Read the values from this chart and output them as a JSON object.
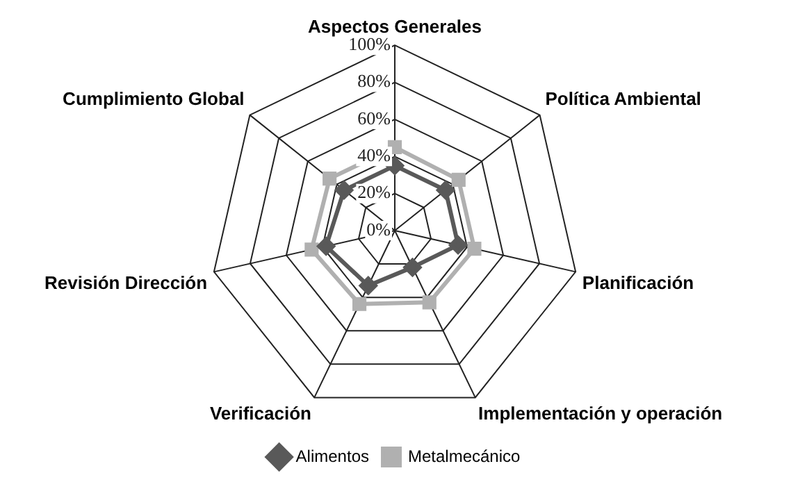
{
  "chart_data": {
    "type": "radar",
    "categories": [
      "Aspectos Generales",
      "Política Ambiental",
      "Planificación",
      "Implementación y operación",
      "Verificación",
      "Revisión Dirección",
      "Cumplimiento Global"
    ],
    "series": [
      {
        "name": "Alimentos",
        "color": "#595959",
        "marker": "diamond",
        "values": [
          35,
          35,
          35,
          22,
          33,
          38,
          35
        ]
      },
      {
        "name": "Metalmecánico",
        "color": "#b0b0b0",
        "marker": "square",
        "values": [
          45,
          44,
          44,
          43,
          44,
          46,
          45
        ]
      }
    ],
    "ylim": [
      0,
      100
    ],
    "yticks": [
      {
        "value": 0,
        "label": "0%"
      },
      {
        "value": 20,
        "label": "20%"
      },
      {
        "value": 40,
        "label": "40%"
      },
      {
        "value": 60,
        "label": "60%"
      },
      {
        "value": 80,
        "label": "80%"
      },
      {
        "value": 100,
        "label": "100%"
      }
    ],
    "grid": true,
    "legend": "bottom"
  }
}
